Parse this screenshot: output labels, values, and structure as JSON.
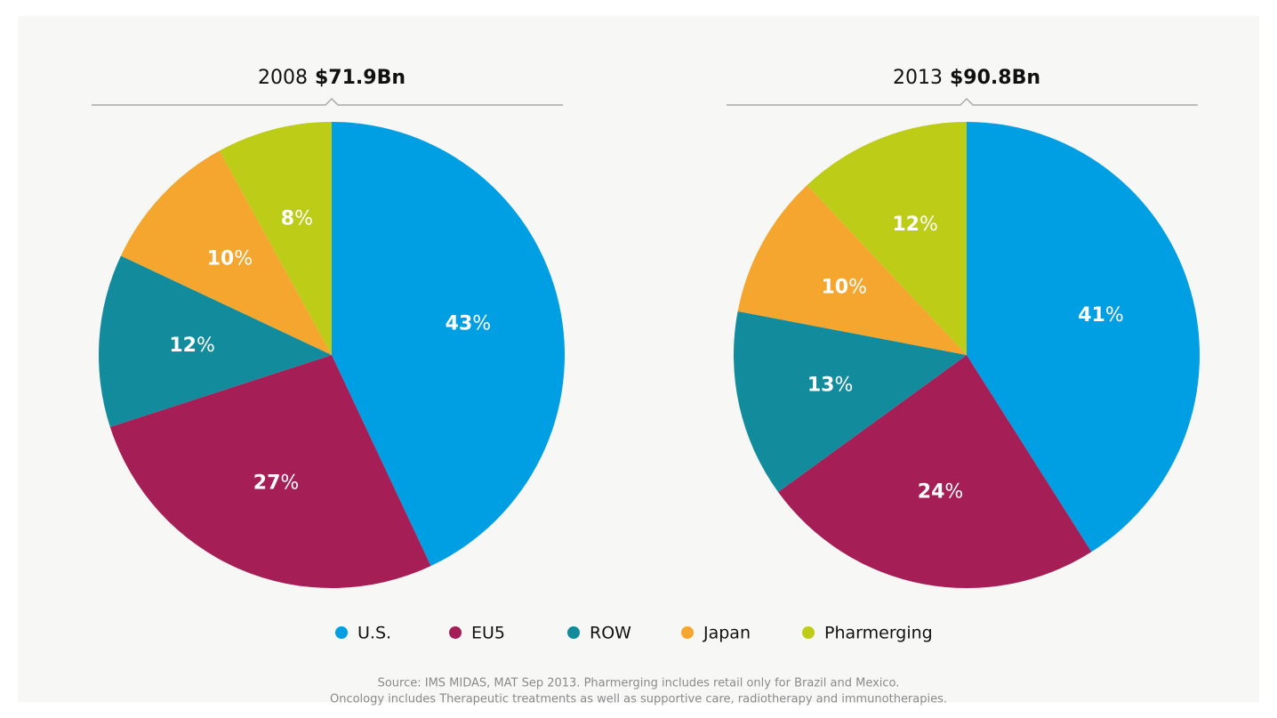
{
  "chart_data": [
    {
      "type": "pie",
      "title": "2008",
      "total": "$71.9Bn",
      "unit": "%",
      "categories": [
        "U.S.",
        "EU5",
        "ROW",
        "Japan",
        "Pharmerging"
      ],
      "values": [
        43,
        27,
        12,
        10,
        8
      ],
      "colors": [
        "#009fe3",
        "#a51e56",
        "#128c9c",
        "#f4a62f",
        "#bdcc17"
      ]
    },
    {
      "type": "pie",
      "title": "2013",
      "total": "$90.8Bn",
      "unit": "%",
      "categories": [
        "U.S.",
        "EU5",
        "ROW",
        "Japan",
        "Pharmerging"
      ],
      "values": [
        41,
        24,
        13,
        10,
        12
      ],
      "colors": [
        "#009fe3",
        "#a51e56",
        "#128c9c",
        "#f4a62f",
        "#bdcc17"
      ]
    }
  ],
  "legend": "bottom",
  "source": [
    "Source: IMS MIDAS, MAT Sep 2013. Pharmerging includes retail only for Brazil and Mexico.",
    "Oncology includes Therapeutic treatments as well as supportive care, radiotherapy and immunotherapies."
  ]
}
